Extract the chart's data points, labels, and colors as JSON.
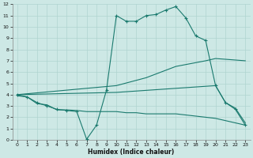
{
  "xlabel": "Humidex (Indice chaleur)",
  "xlim": [
    -0.5,
    23.5
  ],
  "ylim": [
    0,
    12
  ],
  "xticks": [
    0,
    1,
    2,
    3,
    4,
    5,
    6,
    7,
    8,
    9,
    10,
    11,
    12,
    13,
    14,
    15,
    16,
    17,
    18,
    19,
    20,
    21,
    22,
    23
  ],
  "yticks": [
    0,
    1,
    2,
    3,
    4,
    5,
    6,
    7,
    8,
    9,
    10,
    11,
    12
  ],
  "bg_color": "#cde8e5",
  "grid_color": "#afd4d0",
  "line_color": "#1a7a6e",
  "line1_x": [
    0,
    1,
    2,
    3,
    4,
    5,
    6,
    7,
    8,
    9,
    10,
    11,
    12,
    13,
    14,
    15,
    16,
    17,
    18,
    19,
    20,
    21,
    22,
    23
  ],
  "line1_y": [
    4.0,
    3.8,
    3.3,
    3.0,
    2.7,
    2.6,
    2.5,
    0.05,
    1.3,
    4.4,
    11.0,
    10.5,
    10.5,
    11.0,
    11.1,
    11.5,
    11.8,
    10.8,
    9.2,
    8.8,
    4.8,
    3.3,
    2.7,
    1.3
  ],
  "line2_x": [
    0,
    1,
    2,
    3,
    4,
    5,
    6,
    7,
    8,
    9,
    10,
    11,
    12,
    13,
    14,
    15,
    16,
    17,
    18,
    19,
    20,
    21,
    22,
    23
  ],
  "line2_y": [
    3.9,
    3.8,
    3.2,
    3.1,
    2.65,
    2.65,
    2.6,
    2.5,
    2.5,
    2.5,
    2.5,
    2.4,
    2.4,
    2.3,
    2.3,
    2.3,
    2.3,
    2.2,
    2.1,
    2.0,
    1.9,
    1.7,
    1.5,
    1.3
  ],
  "line3_x": [
    0,
    10,
    13,
    16,
    19,
    20,
    23
  ],
  "line3_y": [
    4.0,
    4.8,
    5.5,
    6.5,
    7.0,
    7.2,
    7.0
  ],
  "line4_x": [
    0,
    10,
    15,
    20,
    21,
    22,
    23
  ],
  "line4_y": [
    4.0,
    4.2,
    4.5,
    4.8,
    3.3,
    2.8,
    1.5
  ]
}
